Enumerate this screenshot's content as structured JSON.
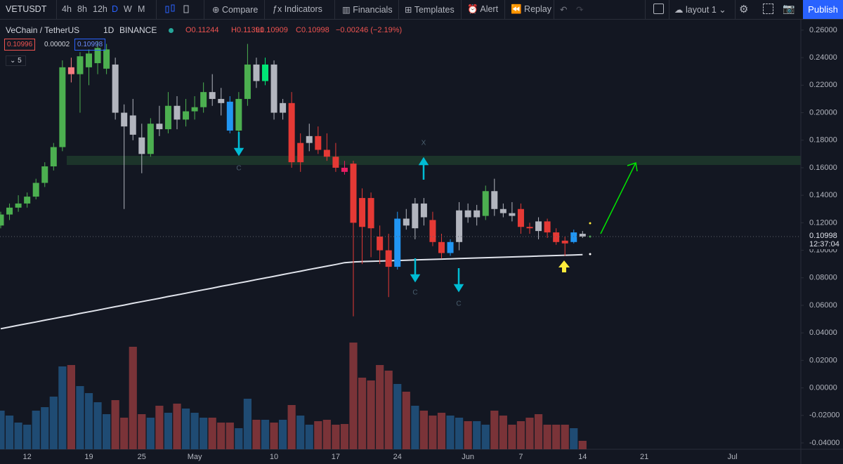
{
  "toolbar": {
    "symbol": "VETUSDT",
    "intervals": [
      "4h",
      "8h",
      "12h",
      "D",
      "W",
      "M"
    ],
    "compare": "Compare",
    "indicators": "Indicators",
    "financials": "Financials",
    "templates": "Templates",
    "alert": "Alert",
    "replay": "Replay",
    "layout": "layout 1",
    "publish": "Publish"
  },
  "legend": {
    "name": "VeChain / TetherUS",
    "interval": "1D",
    "exchange": "BINANCE",
    "open": "O0.11244",
    "high": "H0.11391",
    "low": "L0.10909",
    "close": "C0.10998",
    "change": "−0.00246 (−2.19%)",
    "bid": "0.10996",
    "spread": "0.00002",
    "ask": "0.10998",
    "indicator_count": "5"
  },
  "chart_data": {
    "type": "candlestick",
    "grid": false,
    "categories": [
      null,
      null,
      null,
      "12",
      null,
      null,
      null,
      null,
      null,
      null,
      "19",
      null,
      null,
      null,
      null,
      null,
      "25",
      null,
      null,
      null,
      null,
      null,
      "May",
      null,
      null,
      null,
      null,
      null,
      null,
      null,
      null,
      "10",
      null,
      null,
      null,
      null,
      null,
      null,
      "17",
      null,
      null,
      null,
      null,
      null,
      null,
      "24",
      null,
      null,
      null,
      null,
      null,
      null,
      null,
      "Jun",
      null,
      null,
      null,
      null,
      null,
      "7",
      null,
      null,
      null,
      null,
      null,
      null,
      "14",
      null,
      null,
      null,
      null,
      null,
      null,
      "21",
      null,
      null,
      null,
      null,
      null,
      null,
      null,
      null,
      null,
      "Jul"
    ],
    "open": [
      0.118,
      0.126,
      0.131,
      0.134,
      0.139,
      0.149,
      0.161,
      0.175,
      0.233,
      0.228,
      0.233,
      0.236,
      0.232,
      0.235,
      0.2,
      0.198,
      0.182,
      0.17,
      0.192,
      0.188,
      0.205,
      0.195,
      0.201,
      0.204,
      0.215,
      0.21,
      0.208,
      0.187,
      0.21,
      0.235,
      0.223,
      0.235,
      0.2,
      0.207,
      0.164,
      0.178,
      0.183,
      0.173,
      0.168,
      0.16,
      0.163,
      0.138,
      0.138,
      0.11,
      0.1,
      0.088,
      0.123,
      0.116,
      0.134,
      0.122,
      0.106,
      0.098,
      0.106,
      0.129,
      0.124,
      0.125,
      0.143,
      0.13,
      0.127,
      0.13,
      0.117,
      0.121,
      0.121,
      0.113,
      0.107,
      0.106,
      0.112,
      null,
      null,
      null,
      null,
      null,
      null,
      null,
      null,
      null,
      null,
      null,
      null,
      null,
      null,
      null,
      null,
      null
    ],
    "high": [
      0.128,
      0.134,
      0.14,
      0.142,
      0.152,
      0.164,
      0.178,
      0.238,
      0.24,
      0.244,
      0.246,
      0.252,
      0.25,
      0.24,
      0.206,
      0.21,
      0.192,
      0.196,
      0.205,
      0.215,
      0.212,
      0.21,
      0.212,
      0.222,
      0.228,
      0.218,
      0.212,
      0.215,
      0.25,
      0.24,
      0.24,
      0.238,
      0.21,
      0.215,
      0.185,
      0.192,
      0.19,
      0.185,
      0.178,
      0.165,
      0.165,
      0.145,
      0.142,
      0.118,
      0.112,
      0.128,
      0.13,
      0.138,
      0.138,
      0.128,
      0.112,
      0.108,
      0.135,
      0.134,
      0.133,
      0.147,
      0.152,
      0.134,
      0.135,
      0.134,
      0.12,
      0.124,
      0.123,
      0.116,
      0.11,
      0.115,
      0.114,
      null,
      null,
      null,
      null,
      null,
      null,
      null,
      null,
      null,
      null,
      null,
      null,
      null,
      null,
      null,
      null,
      null
    ],
    "low": [
      0.116,
      0.122,
      0.128,
      0.131,
      0.137,
      0.146,
      0.158,
      0.172,
      0.222,
      0.2,
      0.22,
      0.228,
      0.228,
      0.195,
      0.13,
      0.18,
      0.156,
      0.168,
      0.183,
      0.185,
      0.188,
      0.19,
      0.195,
      0.2,
      0.205,
      0.198,
      0.185,
      0.185,
      0.205,
      0.218,
      0.22,
      0.195,
      0.195,
      0.16,
      0.157,
      0.172,
      0.17,
      0.165,
      0.157,
      0.155,
      0.052,
      0.09,
      0.095,
      0.09,
      0.066,
      0.086,
      0.115,
      0.108,
      0.118,
      0.103,
      0.094,
      0.096,
      0.1,
      0.12,
      0.118,
      0.122,
      0.125,
      0.124,
      0.121,
      0.112,
      0.112,
      0.108,
      0.109,
      0.104,
      0.096,
      0.105,
      0.109,
      null,
      null,
      null,
      null,
      null,
      null,
      null,
      null,
      null,
      null,
      null,
      null,
      null,
      null,
      null,
      null,
      null
    ],
    "close": [
      0.126,
      0.131,
      0.134,
      0.139,
      0.149,
      0.161,
      0.175,
      0.233,
      0.228,
      0.241,
      0.243,
      0.247,
      0.246,
      0.2,
      0.19,
      0.184,
      0.17,
      0.192,
      0.188,
      0.205,
      0.195,
      0.201,
      0.204,
      0.215,
      0.21,
      0.207,
      0.187,
      0.21,
      0.235,
      0.223,
      0.235,
      0.2,
      0.207,
      0.164,
      0.178,
      0.183,
      0.173,
      0.168,
      0.16,
      0.157,
      0.12,
      0.117,
      0.116,
      0.1,
      0.088,
      0.123,
      0.118,
      0.134,
      0.124,
      0.106,
      0.098,
      0.106,
      0.129,
      0.124,
      0.129,
      0.143,
      0.13,
      0.127,
      0.125,
      0.117,
      0.116,
      0.114,
      0.113,
      0.106,
      0.105,
      0.113,
      0.11,
      null,
      null,
      null,
      null,
      null,
      null,
      null,
      null,
      null,
      null,
      null,
      null,
      null,
      null,
      null,
      null,
      null
    ],
    "candle_colors": [
      "#4caf50",
      "#4caf50",
      "#4caf50",
      "#4caf50",
      "#4caf50",
      "#4caf50",
      "#4caf50",
      "#4caf50",
      "#f77c80",
      "#4caf50",
      "#4caf50",
      "#4caf50",
      "#4caf50",
      "#b2b5be",
      "#b2b5be",
      "#b2b5be",
      "#b2b5be",
      "#4caf50",
      "#b2b5be",
      "#4caf50",
      "#b2b5be",
      "#4caf50",
      "#4caf50",
      "#4caf50",
      "#b2b5be",
      "#b2b5be",
      "#2196f3",
      "#4caf50",
      "#4caf50",
      "#b2b5be",
      "#00e676",
      "#b2b5be",
      "#b2b5be",
      "#e53935",
      "#e53935",
      "#b2b5be",
      "#e53935",
      "#e53935",
      "#e53935",
      "#e91e63",
      "#e53935",
      "#e53935",
      "#e53935",
      "#e53935",
      "#e53935",
      "#2196f3",
      "#b2b5be",
      "#b2b5be",
      "#b2b5be",
      "#e53935",
      "#e53935",
      "#2196f3",
      "#b2b5be",
      "#b2b5be",
      "#b2b5be",
      "#4caf50",
      "#b2b5be",
      "#b2b5be",
      "#b2b5be",
      "#e53935",
      "#e53935",
      "#b2b5be",
      "#e53935",
      "#e53935",
      "#e53935",
      "#2196f3",
      "#b2b5be",
      null,
      null,
      null,
      null,
      null,
      null,
      null,
      null,
      null,
      null,
      null,
      null,
      null,
      null,
      null,
      null,
      null
    ],
    "volume": [
      55,
      48,
      38,
      35,
      55,
      60,
      75,
      118,
      120,
      90,
      80,
      67,
      50,
      70,
      45,
      146,
      50,
      45,
      62,
      52,
      65,
      58,
      52,
      45,
      45,
      38,
      38,
      30,
      72,
      42,
      42,
      38,
      42,
      63,
      48,
      35,
      40,
      42,
      35,
      36,
      152,
      102,
      98,
      120,
      112,
      93,
      82,
      62,
      55,
      48,
      52,
      48,
      45,
      40,
      40,
      35,
      55,
      48,
      35,
      40,
      45,
      50,
      35,
      35,
      35,
      30,
      12,
      null,
      null,
      null,
      null,
      null,
      null,
      null,
      null,
      null,
      null,
      null,
      null,
      null,
      null,
      null,
      null,
      null
    ],
    "volume_up_color": "#1f4b73",
    "volume_down_color": "#7a3338",
    "ma": {
      "color": "#e0e3eb",
      "values": [
        0.043,
        0.0442,
        0.0455,
        0.0467,
        0.0479,
        0.0492,
        0.0504,
        0.0516,
        0.0528,
        0.0541,
        0.0553,
        0.0565,
        0.0578,
        0.059,
        0.0602,
        0.0615,
        0.0627,
        0.0639,
        0.0651,
        0.0664,
        0.0676,
        0.0688,
        0.0701,
        0.0713,
        0.0725,
        0.0738,
        0.075,
        0.0762,
        0.0774,
        0.0787,
        0.0799,
        0.0811,
        0.0824,
        0.0836,
        0.0848,
        0.0861,
        0.0873,
        0.0885,
        0.0897,
        0.091,
        0.0915,
        0.0918,
        0.092,
        0.0922,
        0.0924,
        0.0926,
        0.0928,
        0.093,
        0.0932,
        0.0934,
        0.0936,
        0.0938,
        0.094,
        0.0942,
        0.0944,
        0.0946,
        0.0948,
        0.095,
        0.0952,
        0.0954,
        0.0956,
        0.0958,
        0.096,
        0.0962,
        0.0964,
        0.0966,
        0.0968,
        null,
        null,
        null,
        null,
        null,
        null,
        null,
        null,
        null,
        null,
        null,
        null,
        null,
        null,
        null,
        null,
        null
      ]
    },
    "ylim": [
      -0.0446,
      0.2666
    ],
    "yticks": [
      {
        "value": 0.26,
        "label": "0.26000"
      },
      {
        "value": 0.24,
        "label": "0.24000"
      },
      {
        "value": 0.22,
        "label": "0.22000"
      },
      {
        "value": 0.2,
        "label": "0.20000"
      },
      {
        "value": 0.18,
        "label": "0.18000"
      },
      {
        "value": 0.16,
        "label": "0.16000"
      },
      {
        "value": 0.14,
        "label": "0.14000"
      },
      {
        "value": 0.12,
        "label": "0.12000"
      },
      {
        "value": 0.1,
        "label": "0.10000"
      },
      {
        "value": 0.08,
        "label": "0.08000"
      },
      {
        "value": 0.06,
        "label": "0.06000"
      },
      {
        "value": 0.04,
        "label": "0.04000"
      },
      {
        "value": 0.02,
        "label": "0.02000"
      },
      {
        "value": 0,
        "label": "0.00000"
      },
      {
        "value": -0.02,
        "label": "-0.02000"
      },
      {
        "value": -0.04,
        "label": "-0.04000"
      }
    ],
    "last_price": {
      "value": 0.10998,
      "label": "0.10998"
    },
    "countdown": "12:37:04",
    "annotations": [
      "X",
      "C",
      "C",
      "C"
    ]
  }
}
